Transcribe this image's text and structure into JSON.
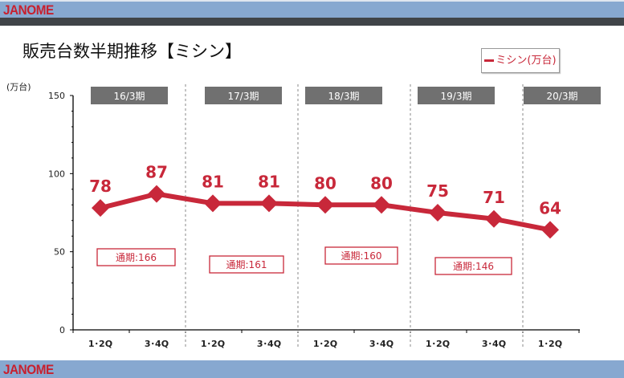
{
  "header": {
    "logo": "JANOME"
  },
  "footer": {
    "logo": "JANOME"
  },
  "title": "販売台数半期推移【ミシン】",
  "chart_data": {
    "type": "line",
    "title": "販売台数半期推移【ミシン】",
    "ylabel": "(万台)",
    "ylim": [
      0,
      150
    ],
    "yticks": [
      0,
      50,
      100,
      150
    ],
    "categories": [
      "1･2Q",
      "3･4Q",
      "1･2Q",
      "3･4Q",
      "1･2Q",
      "3･4Q",
      "1･2Q",
      "3･4Q",
      "1･2Q"
    ],
    "periods": [
      "16/3期",
      "17/3期",
      "18/3期",
      "19/3期",
      "20/3期"
    ],
    "series": [
      {
        "name": "ミシン(万台)",
        "values": [
          78,
          87,
          81,
          81,
          80,
          80,
          75,
          71,
          64
        ],
        "color": "#c8283a"
      }
    ],
    "annual_totals": [
      "通期:166",
      "通期:161",
      "通期:160",
      "通期:146"
    ],
    "legend": "top-right",
    "grid": false
  }
}
